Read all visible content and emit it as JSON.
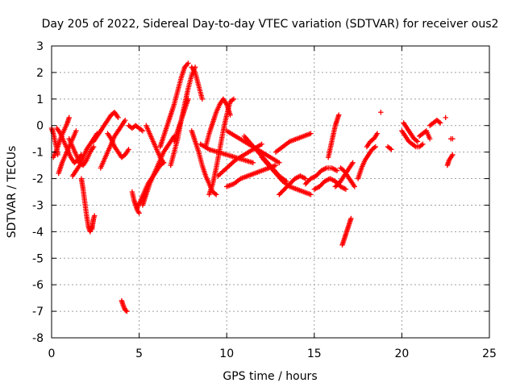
{
  "chart_data": {
    "type": "scatter",
    "title": "Day 205 of 2022, Sidereal Day-to-day VTEC variation (SDTVAR) for receiver ous2",
    "xlabel": "GPS time / hours",
    "ylabel": "SDTVAR / TECUs",
    "xlim": [
      0,
      25
    ],
    "ylim": [
      -8,
      3
    ],
    "xticks": [
      0,
      5,
      10,
      15,
      20,
      25
    ],
    "yticks": [
      -8,
      -7,
      -6,
      -5,
      -4,
      -3,
      -2,
      -1,
      0,
      1,
      2,
      3
    ],
    "xtick_labels": [
      "0",
      "5",
      "10",
      "15",
      "20",
      "25"
    ],
    "ytick_labels": [
      "-8",
      "-7",
      "-6",
      "-5",
      "-4",
      "-3",
      "-2",
      "-1",
      "0",
      "1",
      "2",
      "3"
    ],
    "grid": true,
    "marker": "+",
    "color": "#ff0000",
    "series": [
      {
        "name": "s01",
        "x": [
          0.0,
          0.1,
          0.2,
          0.3,
          0.35
        ],
        "y": [
          -0.1,
          -0.3,
          -0.6,
          -0.9,
          -1.1
        ]
      },
      {
        "name": "s02",
        "x": [
          0.1,
          0.3,
          0.5,
          0.7,
          0.9,
          1.0
        ],
        "y": [
          -1.2,
          -0.9,
          -0.5,
          -0.2,
          0.1,
          0.3
        ]
      },
      {
        "name": "s03",
        "x": [
          0.3,
          0.5,
          0.7,
          0.9,
          1.1,
          1.3,
          1.5,
          1.7
        ],
        "y": [
          -0.1,
          -0.3,
          -0.6,
          -0.9,
          -1.2,
          -1.4,
          -1.3,
          -1.1
        ]
      },
      {
        "name": "s04",
        "x": [
          0.4,
          0.6,
          0.8,
          1.0,
          1.2,
          1.4
        ],
        "y": [
          -1.8,
          -1.4,
          -1.1,
          -0.8,
          -0.5,
          -0.2
        ]
      },
      {
        "name": "s05",
        "x": [
          1.0,
          1.2,
          1.4,
          1.6,
          1.8,
          2.0,
          2.2,
          2.4
        ],
        "y": [
          -0.5,
          -0.8,
          -1.1,
          -1.4,
          -1.5,
          -1.3,
          -1.0,
          -0.8
        ]
      },
      {
        "name": "s06",
        "x": [
          1.7,
          1.8,
          1.9,
          2.0,
          2.1,
          2.2,
          2.3
        ],
        "y": [
          -2.0,
          -2.4,
          -2.9,
          -3.4,
          -3.8,
          -4.0,
          -3.8
        ]
      },
      {
        "name": "s07",
        "x": [
          2.3,
          2.35,
          2.4,
          2.45
        ],
        "y": [
          -3.9,
          -3.7,
          -3.5,
          -3.4
        ]
      },
      {
        "name": "s08",
        "x": [
          1.2,
          1.4,
          1.6,
          1.8,
          2.0,
          2.2,
          2.4,
          2.6
        ],
        "y": [
          -1.9,
          -1.7,
          -1.5,
          -1.2,
          -0.9,
          -0.7,
          -0.5,
          -0.3
        ]
      },
      {
        "name": "s09",
        "x": [
          2.4,
          2.6,
          2.8,
          3.0,
          3.2,
          3.4,
          3.6,
          3.8
        ],
        "y": [
          -0.6,
          -0.4,
          -0.2,
          0.0,
          0.2,
          0.4,
          0.5,
          0.3
        ]
      },
      {
        "name": "s10",
        "x": [
          2.8,
          3.0,
          3.2,
          3.4,
          3.6,
          3.8,
          4.0,
          4.2
        ],
        "y": [
          -1.6,
          -1.3,
          -1.0,
          -0.7,
          -0.4,
          -0.2,
          0.0,
          0.2
        ]
      },
      {
        "name": "s11",
        "x": [
          3.2,
          3.4,
          3.6,
          3.8,
          4.0,
          4.2,
          4.4
        ],
        "y": [
          -0.3,
          -0.5,
          -0.8,
          -1.0,
          -1.2,
          -1.1,
          -0.9
        ]
      },
      {
        "name": "s12",
        "x": [
          4.0,
          4.1,
          4.2,
          4.3
        ],
        "y": [
          -6.6,
          -6.8,
          -6.95,
          -7.0
        ]
      },
      {
        "name": "s13",
        "x": [
          4.4,
          4.6,
          4.8,
          5.0,
          5.2
        ],
        "y": [
          0.0,
          -0.1,
          0.0,
          -0.1,
          -0.2
        ]
      },
      {
        "name": "s14",
        "x": [
          4.6,
          4.7,
          4.8,
          4.9,
          5.0
        ],
        "y": [
          -2.5,
          -2.8,
          -3.0,
          -3.2,
          -3.3
        ]
      },
      {
        "name": "s15",
        "x": [
          4.9,
          5.1,
          5.3,
          5.5,
          5.7,
          5.9
        ],
        "y": [
          -3.1,
          -2.8,
          -2.5,
          -2.2,
          -2.0,
          -1.8
        ]
      },
      {
        "name": "s16",
        "x": [
          5.2,
          5.4,
          5.6,
          5.8,
          6.0,
          6.2,
          6.4
        ],
        "y": [
          -3.0,
          -2.6,
          -2.2,
          -1.9,
          -1.7,
          -1.5,
          -1.4
        ]
      },
      {
        "name": "s17",
        "x": [
          5.4,
          5.6,
          5.8,
          6.0,
          6.2,
          6.4
        ],
        "y": [
          0.0,
          -0.3,
          -0.6,
          -0.9,
          -1.2,
          -1.4
        ]
      },
      {
        "name": "s18",
        "x": [
          5.8,
          6.0,
          6.2,
          6.4,
          6.6,
          6.8,
          7.0
        ],
        "y": [
          -1.9,
          -1.6,
          -1.3,
          -1.0,
          -0.8,
          -0.6,
          -0.4
        ]
      },
      {
        "name": "s19",
        "x": [
          6.2,
          6.4,
          6.6,
          6.8,
          7.0,
          7.2,
          7.4,
          7.6,
          7.8
        ],
        "y": [
          -0.8,
          -0.4,
          0.0,
          0.4,
          0.8,
          1.3,
          1.8,
          2.2,
          2.35
        ]
      },
      {
        "name": "s20",
        "x": [
          6.8,
          7.0,
          7.2,
          7.4,
          7.6,
          7.8,
          8.0,
          8.2
        ],
        "y": [
          -1.5,
          -1.0,
          -0.5,
          0.2,
          0.8,
          1.4,
          1.9,
          2.2
        ]
      },
      {
        "name": "s21",
        "x": [
          7.0,
          7.2,
          7.4,
          7.6,
          7.8
        ],
        "y": [
          -0.6,
          -0.2,
          0.2,
          0.6,
          1.0
        ]
      },
      {
        "name": "s22",
        "x": [
          8.0,
          8.2,
          8.4,
          8.6
        ],
        "y": [
          2.2,
          2.0,
          1.5,
          1.0
        ]
      },
      {
        "name": "s23",
        "x": [
          8.0,
          8.2,
          8.4,
          8.6,
          8.8,
          9.0,
          9.2,
          9.4
        ],
        "y": [
          -0.2,
          -0.6,
          -1.0,
          -1.5,
          -1.9,
          -2.2,
          -2.5,
          -2.6
        ]
      },
      {
        "name": "s24",
        "x": [
          8.8,
          9.0,
          9.2,
          9.4,
          9.6,
          9.8,
          10.0,
          10.2
        ],
        "y": [
          -0.8,
          -0.3,
          0.1,
          0.5,
          0.8,
          1.0,
          0.8,
          0.4
        ]
      },
      {
        "name": "s25",
        "x": [
          9.0,
          9.2,
          9.4,
          9.6,
          9.8,
          10.0,
          10.2,
          10.4
        ],
        "y": [
          -2.6,
          -2.2,
          -1.6,
          -0.9,
          -0.2,
          0.4,
          0.9,
          1.0
        ]
      },
      {
        "name": "s26",
        "x": [
          8.5,
          9.0,
          9.5,
          10.0,
          10.5,
          11.0,
          11.5
        ],
        "y": [
          -0.7,
          -0.9,
          -1.0,
          -1.1,
          -1.2,
          -1.3,
          -1.4
        ]
      },
      {
        "name": "s27",
        "x": [
          9.5,
          10.0,
          10.5,
          11.0,
          11.5,
          12.0
        ],
        "y": [
          -1.9,
          -1.6,
          -1.3,
          -1.1,
          -0.9,
          -0.7
        ]
      },
      {
        "name": "s28",
        "x": [
          10.0,
          10.5,
          11.0,
          11.5,
          12.0,
          12.5,
          13.0
        ],
        "y": [
          -0.2,
          -0.4,
          -0.6,
          -0.8,
          -1.0,
          -1.2,
          -1.4
        ]
      },
      {
        "name": "s29",
        "x": [
          10.0,
          10.4,
          10.8,
          11.2,
          11.6,
          12.0,
          12.4,
          12.8
        ],
        "y": [
          -2.3,
          -2.2,
          -2.0,
          -1.9,
          -1.8,
          -1.7,
          -1.6,
          -1.5
        ]
      },
      {
        "name": "s30",
        "x": [
          11.0,
          11.4,
          11.8,
          12.2,
          12.6,
          13.0,
          13.4
        ],
        "y": [
          -0.4,
          -0.7,
          -1.0,
          -1.3,
          -1.6,
          -1.9,
          -2.1
        ]
      },
      {
        "name": "s31",
        "x": [
          12.0,
          12.4,
          12.8,
          13.2,
          13.6,
          14.0,
          14.4,
          14.8
        ],
        "y": [
          -1.2,
          -1.5,
          -1.8,
          -2.1,
          -2.3,
          -2.4,
          -2.5,
          -2.6
        ]
      },
      {
        "name": "s32",
        "x": [
          12.8,
          13.2,
          13.6,
          14.0,
          14.4,
          14.8
        ],
        "y": [
          -1.0,
          -0.8,
          -0.6,
          -0.5,
          -0.4,
          -0.3
        ]
      },
      {
        "name": "s33",
        "x": [
          13.0,
          13.3,
          13.6,
          13.9,
          14.2,
          14.5
        ],
        "y": [
          -2.6,
          -2.4,
          -2.2,
          -2.0,
          -1.9,
          -2.0
        ]
      },
      {
        "name": "s34",
        "x": [
          14.5,
          14.8,
          15.1,
          15.4,
          15.7,
          16.0,
          16.3
        ],
        "y": [
          -2.2,
          -2.0,
          -1.9,
          -1.7,
          -1.6,
          -1.6,
          -1.7
        ]
      },
      {
        "name": "s35",
        "x": [
          15.0,
          15.3,
          15.6,
          15.9,
          16.2,
          16.5,
          16.8
        ],
        "y": [
          -2.4,
          -2.3,
          -2.1,
          -2.0,
          -2.1,
          -2.3,
          -2.4
        ]
      },
      {
        "name": "s36",
        "x": [
          15.8,
          15.9,
          16.0,
          16.1,
          16.2,
          16.3,
          16.4
        ],
        "y": [
          -1.2,
          -0.9,
          -0.6,
          -0.3,
          0.0,
          0.2,
          0.4
        ]
      },
      {
        "name": "s37",
        "x": [
          16.5,
          16.7,
          16.9,
          17.1,
          17.3
        ],
        "y": [
          -1.6,
          -1.7,
          -1.9,
          -2.1,
          -2.3
        ]
      },
      {
        "name": "s38",
        "x": [
          16.2,
          16.4,
          16.6,
          16.8,
          17.0,
          17.2
        ],
        "y": [
          -2.3,
          -2.2,
          -2.0,
          -1.8,
          -1.6,
          -1.4
        ]
      },
      {
        "name": "s39",
        "x": [
          16.6,
          16.7,
          16.8,
          16.9,
          17.0,
          17.1
        ],
        "y": [
          -4.5,
          -4.3,
          -4.1,
          -3.9,
          -3.7,
          -3.5
        ]
      },
      {
        "name": "s40",
        "x": [
          17.5,
          17.7,
          17.9,
          18.1,
          18.3,
          18.5
        ],
        "y": [
          -2.0,
          -1.6,
          -1.3,
          -1.1,
          -0.9,
          -0.8
        ]
      },
      {
        "name": "s41",
        "x": [
          18.0,
          18.2,
          18.4,
          18.6
        ],
        "y": [
          -0.8,
          -0.6,
          -0.5,
          -0.3
        ]
      },
      {
        "name": "s42",
        "x": [
          18.8
        ],
        "y": [
          0.5
        ]
      },
      {
        "name": "s43",
        "x": [
          19.2,
          19.4
        ],
        "y": [
          -0.8,
          -0.9
        ]
      },
      {
        "name": "s44",
        "x": [
          20.0,
          20.2,
          20.4,
          20.6,
          20.8,
          21.0,
          21.2
        ],
        "y": [
          -0.2,
          -0.4,
          -0.6,
          -0.7,
          -0.8,
          -0.8,
          -0.7
        ]
      },
      {
        "name": "s45",
        "x": [
          20.1,
          20.3,
          20.5,
          20.7,
          20.9
        ],
        "y": [
          0.1,
          -0.1,
          -0.3,
          -0.5,
          -0.6
        ]
      },
      {
        "name": "s46",
        "x": [
          21.0,
          21.2,
          21.4,
          21.6
        ],
        "y": [
          -0.4,
          -0.3,
          -0.2,
          -0.5
        ]
      },
      {
        "name": "s47",
        "x": [
          21.6,
          21.8,
          22.0,
          22.2
        ],
        "y": [
          0.0,
          0.1,
          0.2,
          0.1
        ]
      },
      {
        "name": "s48",
        "x": [
          22.5
        ],
        "y": [
          0.3
        ]
      },
      {
        "name": "s49",
        "x": [
          22.6,
          22.7,
          22.8,
          22.9
        ],
        "y": [
          -1.5,
          -1.3,
          -1.2,
          -1.1
        ]
      },
      {
        "name": "s50",
        "x": [
          22.8,
          22.9
        ],
        "y": [
          -0.5,
          -0.5
        ]
      }
    ]
  }
}
